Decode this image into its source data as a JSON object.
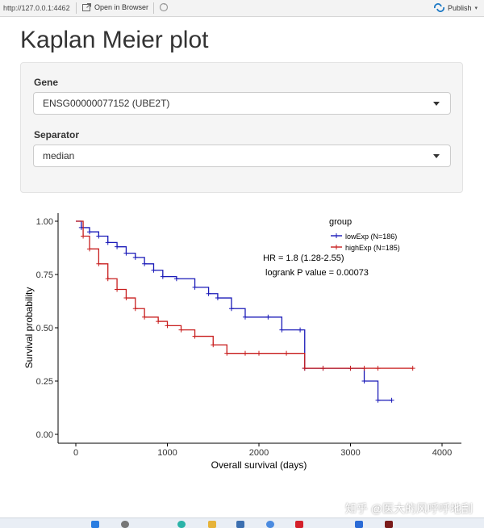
{
  "browser": {
    "url": "http://127.0.0.1:4462",
    "open_in_browser": "Open in Browser",
    "publish": "Publish"
  },
  "page": {
    "title": "Kaplan Meier plot"
  },
  "controls": {
    "gene_label": "Gene",
    "gene_value": "ENSG00000077152 (UBE2T)",
    "separator_label": "Separator",
    "separator_value": "median"
  },
  "watermark": "知乎 @医大的风呼呼地刮",
  "colors": {
    "low": "#1a1ab8",
    "high": "#c81e1e"
  },
  "chart_data": {
    "type": "line",
    "title": "",
    "xlabel": "Overall survival (days)",
    "ylabel": "Survival probability",
    "xlim": [
      0,
      4000
    ],
    "ylim": [
      0,
      1
    ],
    "x_ticks": [
      0,
      1000,
      2000,
      3000,
      4000
    ],
    "y_ticks": [
      0.0,
      0.25,
      0.5,
      0.75,
      1.0
    ],
    "y_tick_labels": [
      "0.00",
      "0.25",
      "0.50",
      "0.75",
      "1.00"
    ],
    "legend_title": "group",
    "legend_position": "top-right",
    "annotations": [
      "HR = 1.8 (1.28-2.55)",
      "logrank P value = 0.00073"
    ],
    "series": [
      {
        "name": "lowExp (N=186)",
        "color": "#1a1ab8",
        "x": [
          0,
          60,
          150,
          250,
          350,
          450,
          550,
          650,
          750,
          850,
          950,
          1100,
          1300,
          1450,
          1550,
          1700,
          1850,
          2100,
          2250,
          2450,
          2500,
          2700,
          3000,
          3150,
          3300,
          3450
        ],
        "y": [
          1.0,
          0.97,
          0.95,
          0.93,
          0.9,
          0.88,
          0.85,
          0.83,
          0.8,
          0.77,
          0.74,
          0.73,
          0.69,
          0.66,
          0.64,
          0.59,
          0.55,
          0.55,
          0.49,
          0.49,
          0.31,
          0.31,
          0.31,
          0.25,
          0.16,
          0.16
        ]
      },
      {
        "name": "highExp  (N=185)",
        "color": "#c81e1e",
        "x": [
          0,
          80,
          150,
          250,
          350,
          450,
          550,
          650,
          750,
          900,
          1000,
          1150,
          1300,
          1500,
          1650,
          1850,
          2000,
          2300,
          2500,
          2700,
          3000,
          3150,
          3300,
          3680
        ],
        "y": [
          1.0,
          0.93,
          0.87,
          0.8,
          0.73,
          0.68,
          0.64,
          0.59,
          0.55,
          0.53,
          0.51,
          0.49,
          0.46,
          0.42,
          0.38,
          0.38,
          0.38,
          0.38,
          0.31,
          0.31,
          0.31,
          0.31,
          0.31,
          0.31
        ]
      }
    ]
  }
}
